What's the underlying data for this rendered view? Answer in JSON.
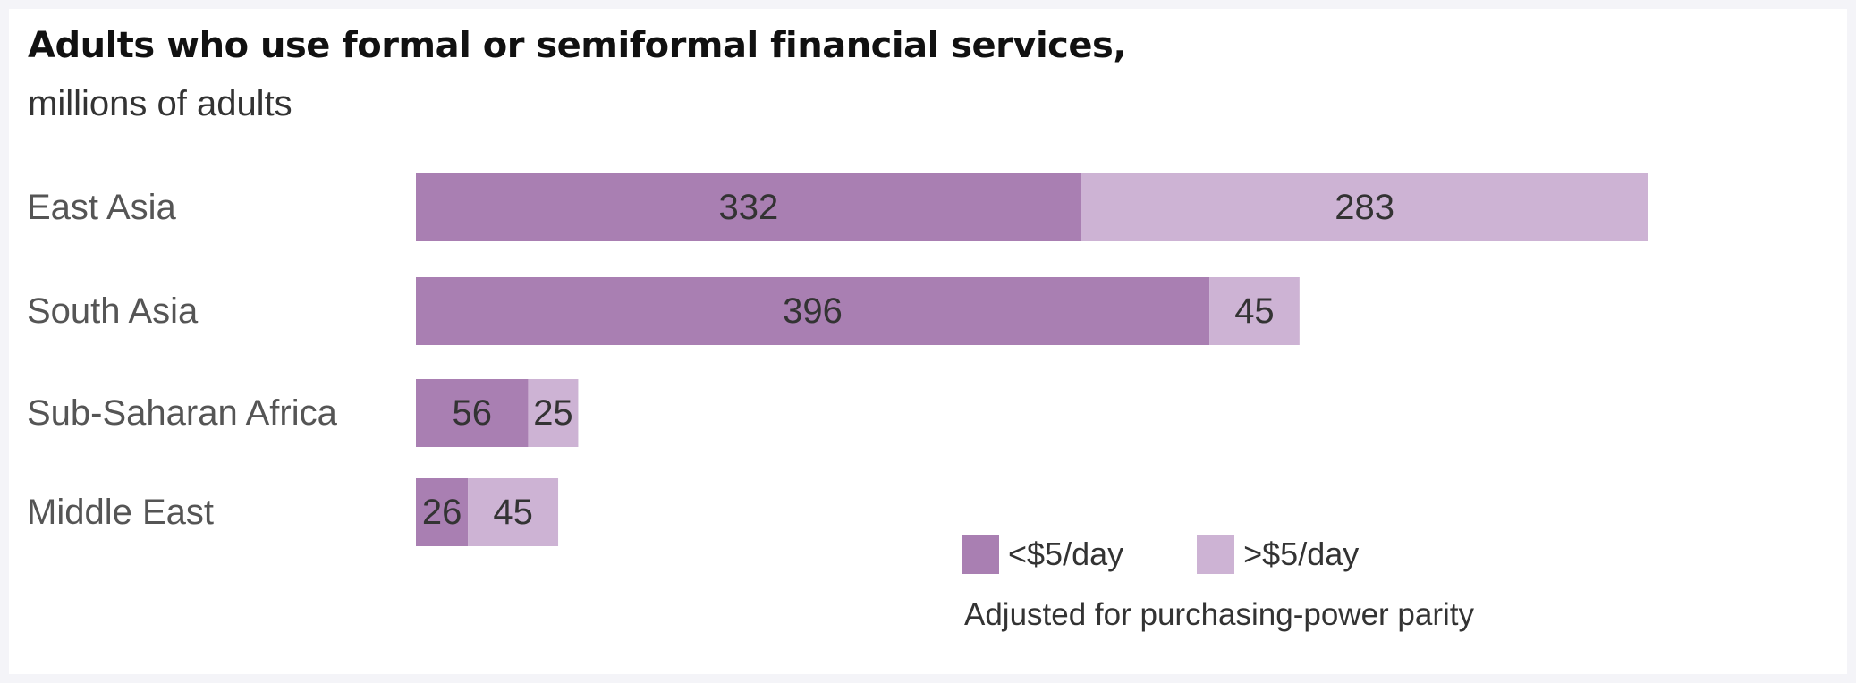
{
  "chart_data": {
    "type": "bar",
    "orientation": "horizontal",
    "stacked": true,
    "title": "Adults who use formal or semiformal financial services,",
    "subtitle": "millions of adults",
    "categories": [
      "East Asia",
      "South Asia",
      "Sub-Saharan Africa",
      "Middle East"
    ],
    "series": [
      {
        "name": "<$5/day",
        "values": [
          332,
          396,
          56,
          26
        ],
        "color": "#a97fb2"
      },
      {
        "name": ">$5/day",
        "values": [
          283,
          45,
          25,
          45
        ],
        "color": "#cdb3d4"
      }
    ],
    "data_labels": true,
    "grid": false,
    "legend_position": "bottom-right",
    "note": "Adjusted for purchasing-power parity"
  }
}
